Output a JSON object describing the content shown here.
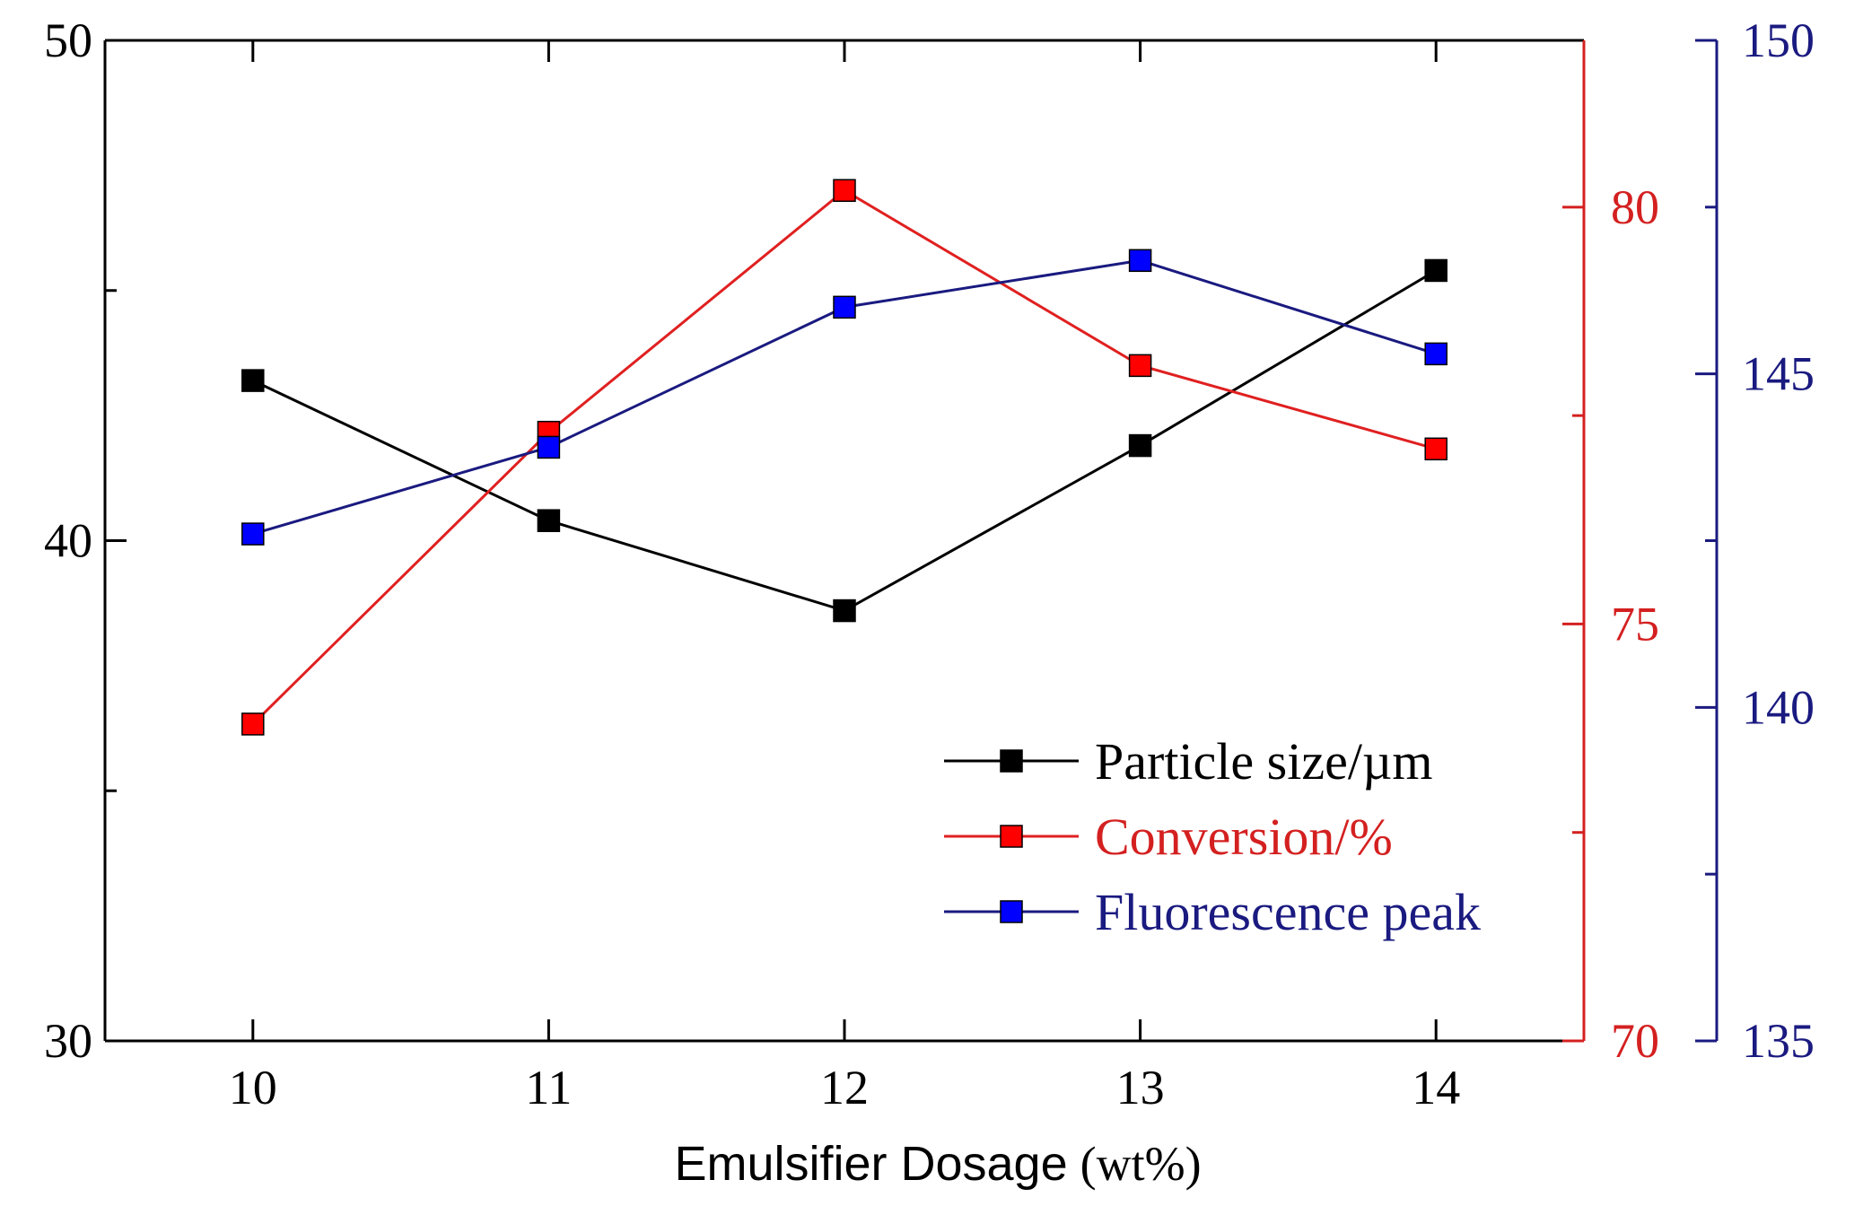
{
  "chart_data": {
    "type": "line",
    "title": "",
    "xlabel": "Emulsifier Dosage",
    "xlabel_unit": "(wt%)",
    "x": [
      10,
      11,
      12,
      13,
      14
    ],
    "x_ticks": [
      "10",
      "11",
      "12",
      "13",
      "14"
    ],
    "xlim": [
      9.5,
      14.5
    ],
    "axes": {
      "left": {
        "ylim": [
          30,
          50
        ],
        "ticks": [
          "30",
          "40",
          "50"
        ],
        "tick_values": [
          30,
          40,
          50
        ],
        "color": "#000000"
      },
      "right1": {
        "ylim": [
          70,
          82
        ],
        "ticks": [
          "70",
          "75",
          "80"
        ],
        "tick_values": [
          70,
          75,
          80
        ],
        "color": "#d42020"
      },
      "right2": {
        "ylim": [
          135,
          150
        ],
        "ticks": [
          "135",
          "140",
          "145",
          "150"
        ],
        "tick_values": [
          135,
          140,
          145,
          150
        ],
        "color": "#1a1a80"
      }
    },
    "series": [
      {
        "name": "Particle size/µm",
        "axis": "left",
        "values": [
          43.2,
          40.4,
          38.6,
          41.9,
          45.4
        ],
        "line_color": "#000000",
        "marker_color": "#000000"
      },
      {
        "name": "Conversion/%",
        "axis": "right1",
        "values": [
          73.8,
          77.3,
          80.2,
          78.1,
          77.1
        ],
        "line_color": "#e02020",
        "marker_color": "#ff0000"
      },
      {
        "name": "Fluorescence peak",
        "axis": "right2",
        "values": [
          142.6,
          143.9,
          146.0,
          146.7,
          145.3
        ],
        "line_color": "#1a1a80",
        "marker_color": "#0000ff"
      }
    ],
    "legend_position": "bottom-right",
    "grid": false
  }
}
